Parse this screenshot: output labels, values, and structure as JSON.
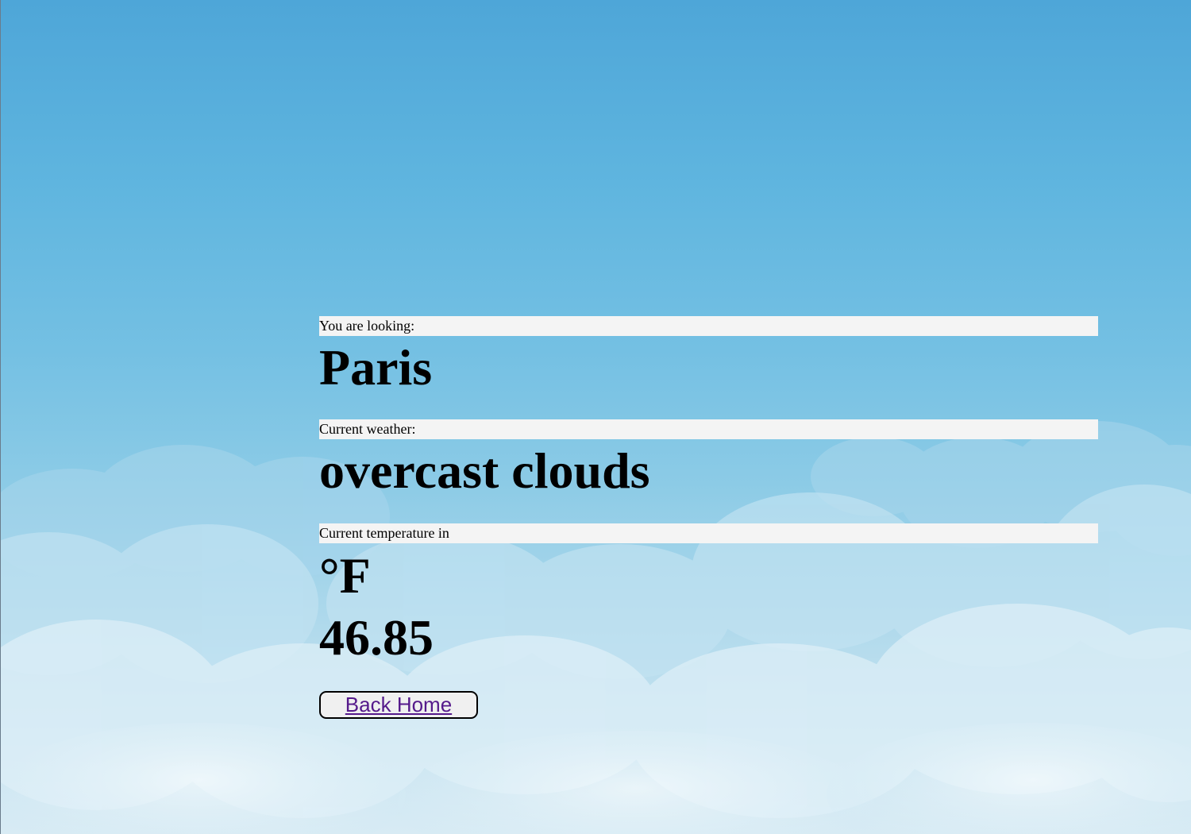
{
  "location": {
    "label": "You are looking:",
    "city": "Paris"
  },
  "weather": {
    "label": "Current weather:",
    "description": "overcast clouds"
  },
  "temperature": {
    "label": "Current temperature in",
    "unit": "°F",
    "value": "46.85"
  },
  "actions": {
    "back_label": "Back Home"
  },
  "colors": {
    "sky_top": "#4ea6d8",
    "sky_bottom": "#d8ebf4",
    "label_bar": "#f4f4f4",
    "link": "#551a8b"
  }
}
